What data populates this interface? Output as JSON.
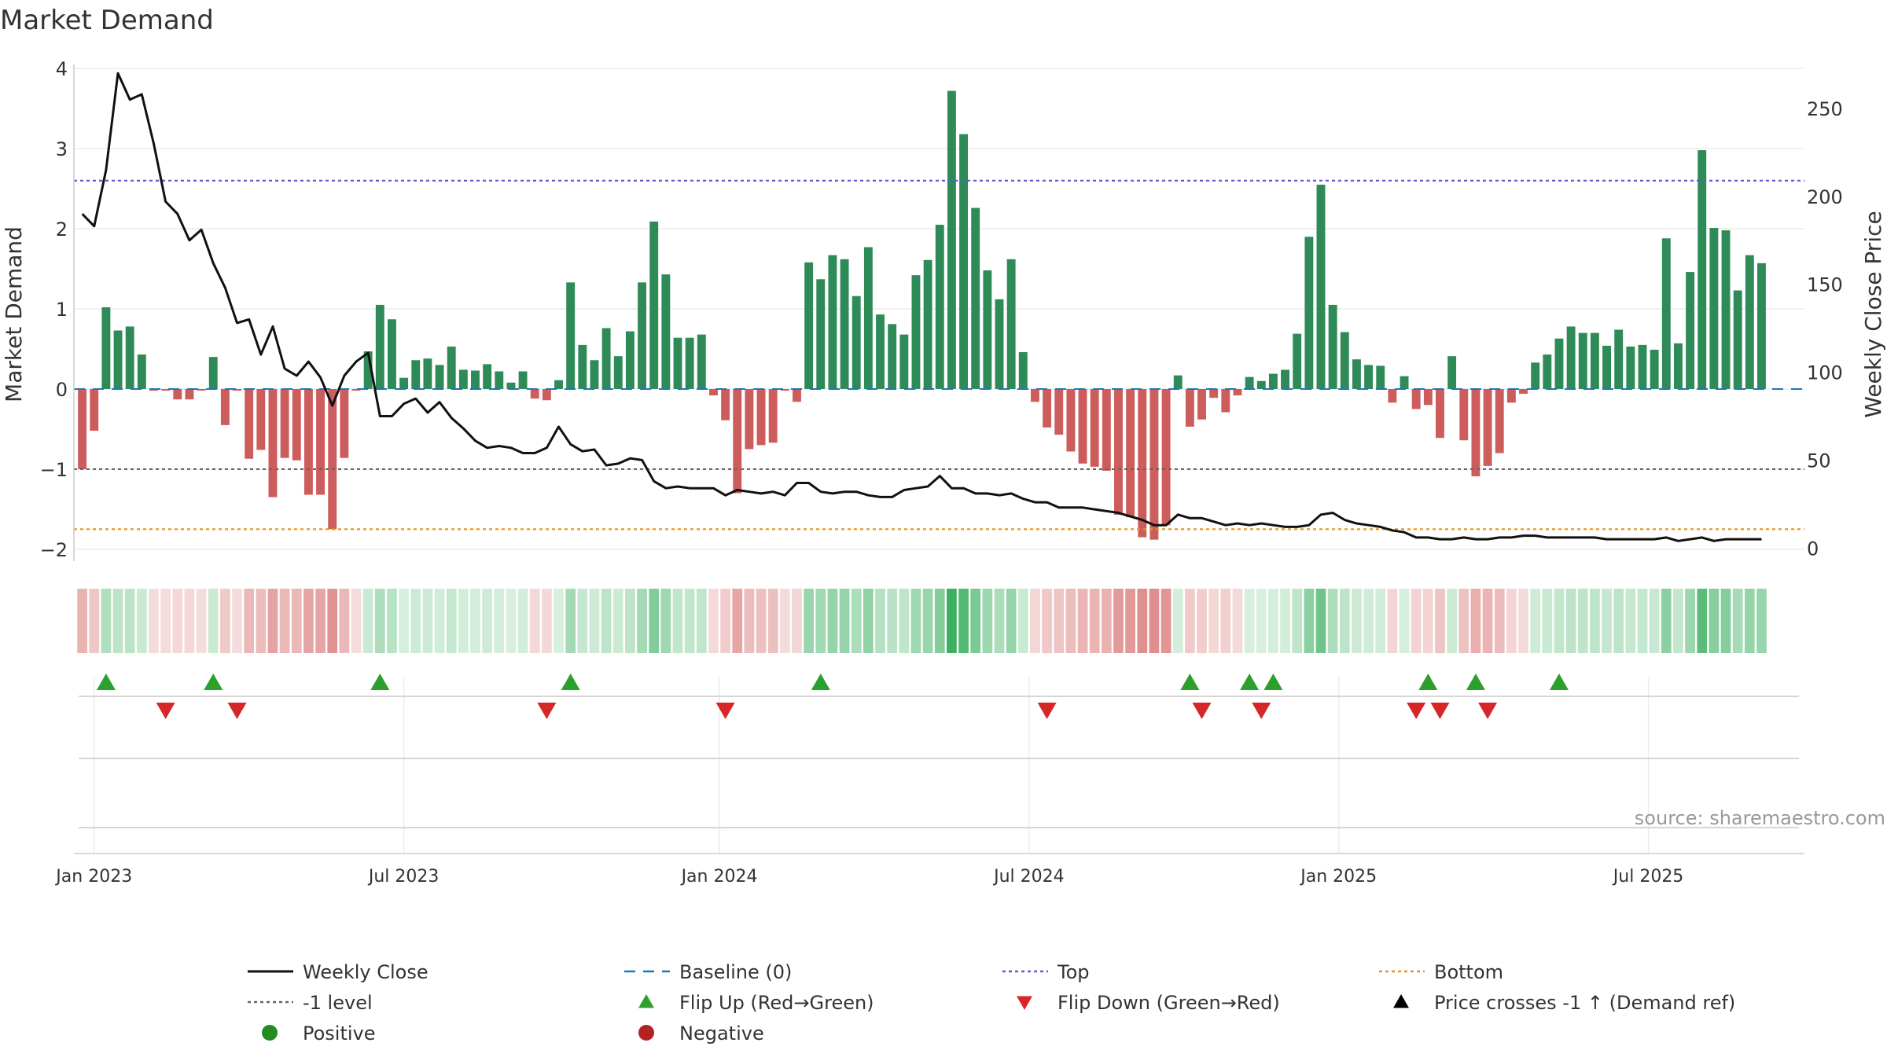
{
  "chart_data": {
    "type": "bar",
    "title": "Market Demand",
    "ylabel": "Market Demand",
    "y2label": "Weekly Close Price",
    "ylim": [
      -2.05,
      4.05
    ],
    "y2lim": [
      -3,
      275
    ],
    "yticks": [
      -2,
      -1,
      0,
      1,
      2,
      3,
      4
    ],
    "yticklabels": [
      "−2",
      "−1",
      "0",
      "1",
      "2",
      "3",
      "4"
    ],
    "y2ticks": [
      0,
      50,
      100,
      150,
      200,
      250
    ],
    "y2ticklabels": [
      "0",
      "50",
      "100",
      "150",
      "200",
      "250"
    ],
    "xticks": [
      {
        "label": "Jan 2023",
        "index": 1
      },
      {
        "label": "Jul 2023",
        "index": 27
      },
      {
        "label": "Jan 2024",
        "index": 53.5
      },
      {
        "label": "Jul 2024",
        "index": 79.5
      },
      {
        "label": "Jan 2025",
        "index": 105.5
      },
      {
        "label": "Jul 2025",
        "index": 131.5
      }
    ],
    "reference_lines": {
      "top": 2.6,
      "minus_one": -1.0,
      "bottom": -1.75,
      "baseline": 0
    },
    "demand": [
      -1.0,
      -0.52,
      1.02,
      0.73,
      0.78,
      0.43,
      -0.02,
      -0.02,
      -0.13,
      -0.13,
      -0.02,
      0.4,
      -0.45,
      -0.02,
      -0.87,
      -0.76,
      -1.35,
      -0.86,
      -0.89,
      -1.32,
      -1.32,
      -1.75,
      -0.86,
      -0.02,
      0.47,
      1.05,
      0.87,
      0.14,
      0.36,
      0.38,
      0.3,
      0.53,
      0.24,
      0.23,
      0.31,
      0.22,
      0.08,
      0.22,
      -0.12,
      -0.14,
      0.11,
      1.33,
      0.55,
      0.36,
      0.76,
      0.41,
      0.72,
      1.33,
      2.09,
      1.43,
      0.64,
      0.64,
      0.68,
      -0.08,
      -0.39,
      -1.3,
      -0.75,
      -0.7,
      -0.67,
      -0.02,
      -0.16,
      1.58,
      1.37,
      1.67,
      1.62,
      1.16,
      1.77,
      0.93,
      0.81,
      0.68,
      1.42,
      1.61,
      2.05,
      3.72,
      3.18,
      2.26,
      1.48,
      1.12,
      1.62,
      0.46,
      -0.16,
      -0.48,
      -0.57,
      -0.78,
      -0.93,
      -0.97,
      -1.02,
      -1.57,
      -1.6,
      -1.85,
      -1.88,
      -1.7,
      0.17,
      -0.47,
      -0.38,
      -0.11,
      -0.29,
      -0.08,
      0.15,
      0.1,
      0.19,
      0.24,
      0.69,
      1.9,
      2.55,
      1.05,
      0.71,
      0.37,
      0.3,
      0.29,
      -0.17,
      0.16,
      -0.25,
      -0.2,
      -0.61,
      0.41,
      -0.64,
      -1.09,
      -0.96,
      -0.8,
      -0.17,
      -0.06,
      0.33,
      0.43,
      0.63,
      0.78,
      0.7,
      0.7,
      0.54,
      0.74,
      0.53,
      0.55,
      0.49,
      1.88,
      0.57,
      1.46,
      2.98,
      2.01,
      1.98,
      1.23,
      1.67,
      1.57
    ],
    "weekly_close": [
      190,
      183,
      215,
      270,
      255,
      258,
      230,
      197,
      190,
      175,
      181,
      162,
      148,
      128,
      130,
      110,
      126,
      102,
      98,
      106,
      97,
      81,
      98,
      106,
      111,
      75,
      75,
      82,
      85,
      77,
      83,
      74,
      68,
      61,
      57,
      58,
      57,
      54,
      54,
      57,
      69,
      59,
      55,
      56,
      47,
      48,
      51,
      50,
      38,
      34,
      35,
      34,
      34,
      34,
      30,
      33,
      32,
      31,
      32,
      30,
      37,
      37,
      32,
      31,
      32,
      32,
      30,
      29,
      29,
      33,
      34,
      35,
      41,
      34,
      34,
      31,
      31,
      30,
      31,
      28,
      26,
      26,
      23,
      23,
      23,
      22,
      21,
      20,
      18,
      16,
      13,
      13,
      19,
      17,
      17,
      15,
      13,
      14,
      13,
      14,
      13,
      12,
      12,
      13,
      19,
      20,
      16,
      14,
      13,
      12,
      10,
      9,
      6,
      6,
      5,
      5,
      6,
      5,
      5,
      6,
      6,
      7,
      7,
      6,
      6,
      6,
      6,
      6,
      5,
      5,
      5,
      5,
      5,
      6,
      4,
      5,
      6,
      4,
      5,
      5,
      5,
      5
    ],
    "flip_up_indices": [
      2,
      11,
      25,
      41,
      62,
      93,
      98,
      100,
      113,
      117,
      124
    ],
    "flip_down_indices": [
      7,
      13,
      39,
      54,
      81,
      94,
      99,
      112,
      114,
      118
    ],
    "x_range": [
      -0.7,
      144.6
    ]
  },
  "strips": {
    "labels": [
      "Flip Up (Red→Green)",
      "Flip Down (Green→Red)",
      "Price crosses -1 ↑ (Demand ref)"
    ]
  },
  "source": "source: sharemaestro.com",
  "legend": [
    {
      "label": "Weekly Close",
      "kind": "line",
      "color": "#111111"
    },
    {
      "label": "Baseline (0)",
      "kind": "dash",
      "color": "#1f77b4"
    },
    {
      "label": "Top",
      "kind": "dot",
      "color": "#5b5bd6"
    },
    {
      "label": "Bottom",
      "kind": "dot",
      "color": "#e69520"
    },
    {
      "label": "-1 level",
      "kind": "dot",
      "color": "#666666"
    },
    {
      "label": "Flip Up (Red→Green)",
      "kind": "tri-up",
      "color": "#2ca02c"
    },
    {
      "label": "Flip Down (Green→Red)",
      "kind": "tri-down",
      "color": "#d62728"
    },
    {
      "label": "Price crosses -1 ↑ (Demand ref)",
      "kind": "tri-up",
      "color": "#000000"
    },
    {
      "label": "Positive",
      "kind": "circle",
      "color": "#228b22"
    },
    {
      "label": "Negative",
      "kind": "circle",
      "color": "#b22222"
    }
  ],
  "colors": {
    "positive": "#2e8b57",
    "negative": "#cd5c5c",
    "flip_up": "#2ca02c",
    "flip_down": "#d62728",
    "grid": "#ececec",
    "axis": "#cccccc"
  }
}
